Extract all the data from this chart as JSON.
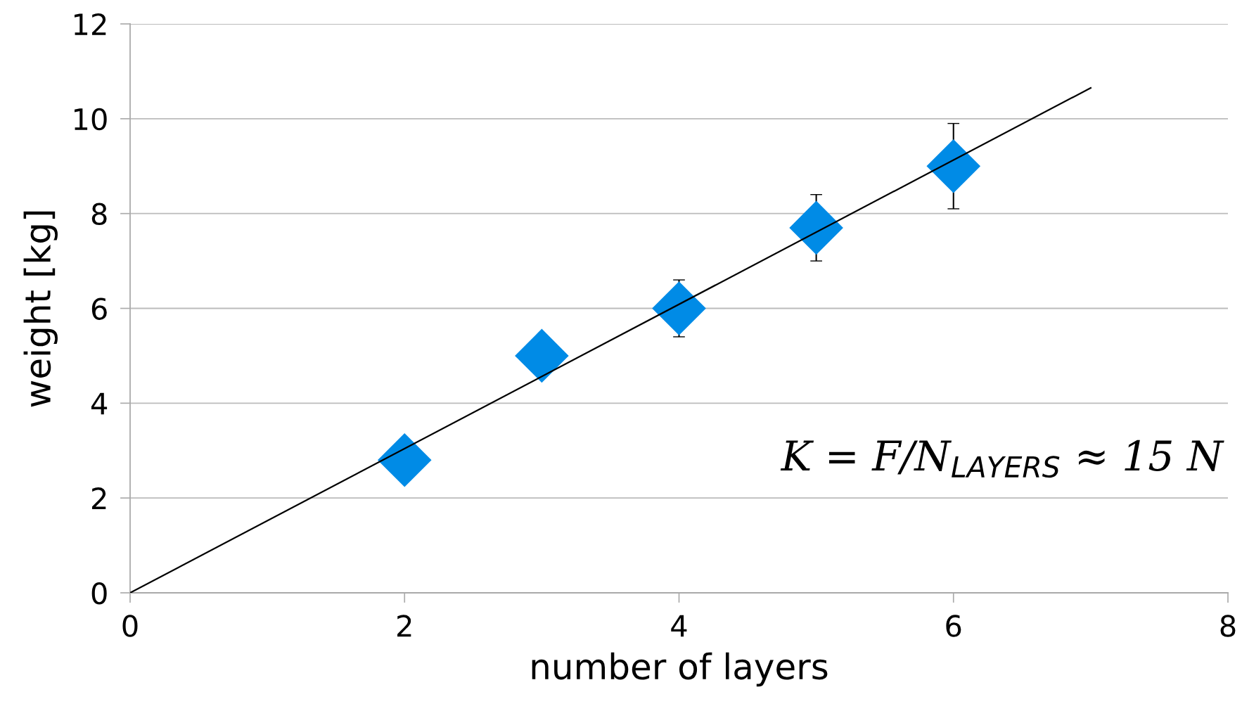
{
  "chart_data": {
    "type": "scatter",
    "xlabel": "number of layers",
    "ylabel": "weight [kg]",
    "series": [
      {
        "color": "#008be6",
        "x": [
          2,
          3,
          4,
          5,
          6
        ],
        "values": [
          2.8,
          5.0,
          6.0,
          7.7,
          9.0
        ],
        "errors": [
          null,
          0.4,
          0.6,
          0.7,
          0.9
        ],
        "marker": "diamond"
      },
      {
        "type": "line",
        "color": "#000000",
        "x": [
          0,
          7
        ],
        "values": [
          0,
          10.65
        ],
        "line_style": "solid",
        "marker": "none"
      }
    ],
    "xlim": [
      0,
      8
    ],
    "xticks": [
      0,
      2,
      4,
      6,
      8
    ],
    "ylim": [
      0,
      12
    ],
    "yticks": [
      0,
      2,
      4,
      6,
      8,
      10,
      12
    ],
    "grid": "y",
    "annotations": [
      "K = F/N$_{LAYERS}$ ≈ 15 N"
    ]
  }
}
